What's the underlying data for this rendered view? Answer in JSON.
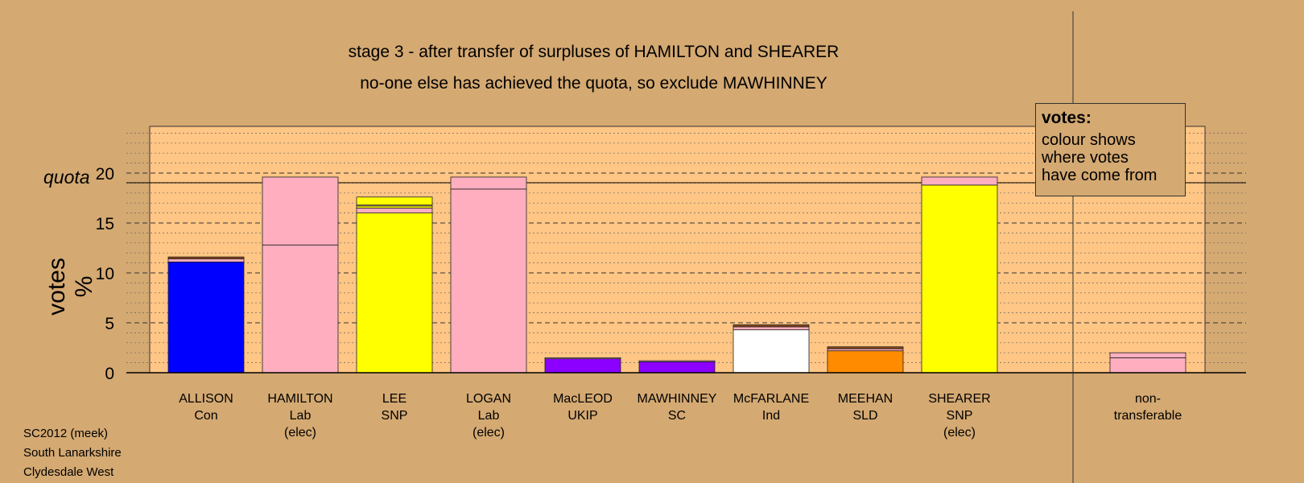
{
  "title_lines": [
    "stage 3 - after transfer of surpluses of HAMILTON and SHEARER",
    "no-one else has achieved the quota, so exclude MAWHINNEY"
  ],
  "legend": {
    "title": "votes:",
    "lines": [
      "colour shows",
      "where votes",
      "have come from"
    ]
  },
  "footer": [
    "SC2012 (meek)",
    "South Lanarkshire",
    "Clydesdale West"
  ],
  "quota_label": "quota",
  "colors": {
    "background": "#D4A972",
    "plot_area": "#FFC685",
    "blue": "#0000FF",
    "pink": "#FFAEC0",
    "yellow": "#FFFF00",
    "purple": "#8B00FF",
    "white": "#FFFFFF",
    "orange": "#FF8C00",
    "brown": "#8B4513"
  },
  "chart_data": {
    "type": "bar",
    "stacked": true,
    "title": "stage 3 - after transfer of surpluses of HAMILTON and SHEARER",
    "subtitle": "no-one else has achieved the quota, so exclude MAWHINNEY",
    "ylabel": "votes %",
    "ylim": [
      0,
      25
    ],
    "yticks": [
      0,
      5,
      10,
      15,
      20
    ],
    "quota": 20,
    "grid": true,
    "legend_placement": "top-right",
    "categories": [
      {
        "lines": [
          "ALLISON",
          "Con"
        ]
      },
      {
        "lines": [
          "HAMILTON",
          "Lab",
          "(elec)"
        ]
      },
      {
        "lines": [
          "LEE",
          "SNP"
        ]
      },
      {
        "lines": [
          "LOGAN",
          "Lab",
          "(elec)"
        ]
      },
      {
        "lines": [
          "MacLEOD",
          "UKIP"
        ]
      },
      {
        "lines": [
          "MAWHINNEY",
          "SC"
        ]
      },
      {
        "lines": [
          "McFARLANE",
          "Ind"
        ]
      },
      {
        "lines": [
          "MEEHAN",
          "SLD"
        ]
      },
      {
        "lines": [
          "SHEARER",
          "SNP",
          "(elec)"
        ]
      },
      {
        "lines": []
      },
      {
        "lines": [
          "non-",
          "transferable"
        ]
      }
    ],
    "segments": [
      [
        {
          "value": 11.1,
          "color": "blue"
        },
        {
          "value": 0.3,
          "color": "pink"
        },
        {
          "value": 0.2,
          "color": "brown"
        }
      ],
      [
        {
          "value": 12.8,
          "color": "pink"
        },
        {
          "value": 6.8,
          "color": "pink"
        }
      ],
      [
        {
          "value": 16.0,
          "color": "yellow"
        },
        {
          "value": 0.5,
          "color": "pink"
        },
        {
          "value": 0.2,
          "color": "yellow"
        },
        {
          "value": 0.1,
          "color": "pink"
        },
        {
          "value": 0.8,
          "color": "yellow"
        }
      ],
      [
        {
          "value": 18.4,
          "color": "pink"
        },
        {
          "value": 1.2,
          "color": "pink"
        }
      ],
      [
        {
          "value": 1.4,
          "color": "purple"
        },
        {
          "value": 0.1,
          "color": "pink"
        }
      ],
      [
        {
          "value": 1.1,
          "color": "purple"
        },
        {
          "value": 0.1,
          "color": "pink"
        }
      ],
      [
        {
          "value": 4.3,
          "color": "white"
        },
        {
          "value": 0.3,
          "color": "pink"
        },
        {
          "value": 0.2,
          "color": "brown"
        }
      ],
      [
        {
          "value": 2.2,
          "color": "orange"
        },
        {
          "value": 0.2,
          "color": "pink"
        },
        {
          "value": 0.2,
          "color": "brown"
        }
      ],
      [
        {
          "value": 18.8,
          "color": "yellow"
        },
        {
          "value": 0.8,
          "color": "pink"
        }
      ],
      [],
      [
        {
          "value": 1.5,
          "color": "pink"
        },
        {
          "value": 0.5,
          "color": "pink"
        }
      ]
    ]
  }
}
